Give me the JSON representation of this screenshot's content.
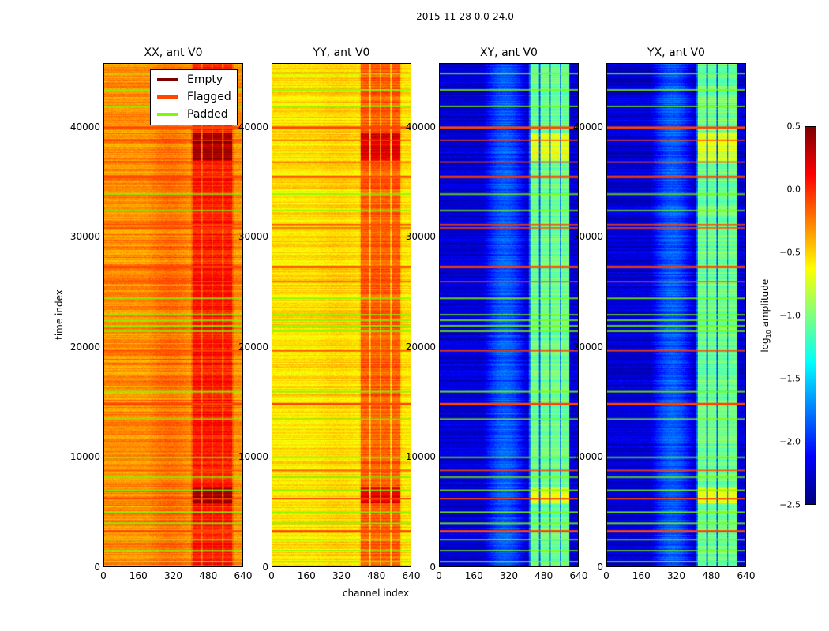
{
  "chart_data": {
    "type": "heatmap",
    "title": "2015-11-28 0.0-24.0",
    "xlabel": "channel index",
    "ylabel": "time index",
    "xlim": [
      0,
      640
    ],
    "ylim": [
      0,
      45800
    ],
    "xticks": [
      "0",
      "160",
      "320",
      "480",
      "640"
    ],
    "yticks": [
      "0",
      "10000",
      "20000",
      "30000",
      "40000"
    ],
    "panels": [
      {
        "title": "XX, ant V0",
        "base": -0.3,
        "band_channels": [
          400,
          600
        ],
        "band_level": 0.05,
        "mid_level": -0.2
      },
      {
        "title": "YY, ant V0",
        "base": -0.55,
        "band_channels": [
          400,
          600
        ],
        "band_level": -0.15,
        "mid_level": -0.5
      },
      {
        "title": "XY, ant V0",
        "base": -2.25,
        "band_channels": [
          410,
          600
        ],
        "band_level": -1.05,
        "mid_level": -1.85
      },
      {
        "title": "YX, ant V0",
        "base": -2.25,
        "band_channels": [
          410,
          600
        ],
        "band_level": -1.05,
        "mid_level": -1.85
      }
    ],
    "flagged_time_indices": [
      40100,
      38900,
      36900,
      35600,
      31200,
      30900,
      27400,
      26000,
      19700,
      14900,
      8800,
      6200,
      3300
    ],
    "padded_time_indices": [
      45000,
      43500,
      42000,
      34000,
      32500,
      24500,
      23000,
      22500,
      22000,
      21500,
      16000,
      13500,
      10000,
      8200,
      7000,
      5000,
      4000,
      2500,
      1500,
      500
    ],
    "legend": {
      "placement": "upper-right of first panel",
      "entries": [
        {
          "label": "Empty",
          "color": "#800000"
        },
        {
          "label": "Flagged",
          "color": "#ff4500"
        },
        {
          "label": "Padded",
          "color": "#7cfc00"
        }
      ]
    },
    "colorbar": {
      "label_prefix": "log",
      "label_sub": "10",
      "label_suffix": " amplitude",
      "colormap": "jet",
      "range": [
        -2.5,
        0.5
      ],
      "ticks": [
        "0.5",
        "0.0",
        "−0.5",
        "−1.0",
        "−1.5",
        "−2.0",
        "−2.5"
      ]
    }
  }
}
